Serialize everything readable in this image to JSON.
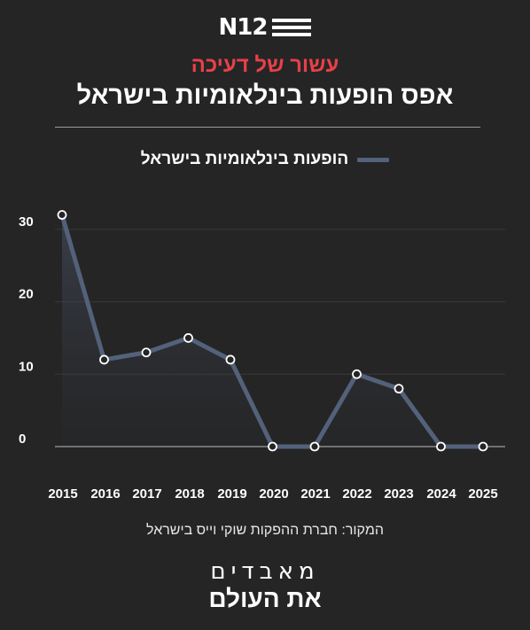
{
  "brand": {
    "logo_text": "N12"
  },
  "header": {
    "kicker": "עשור של דעיכה",
    "title": "אפס הופעות בינלאומיות בישראל"
  },
  "footer": {
    "source": "המקור: חברת ההפקות שוקי וייס בישראל",
    "brand_top": "מאבדים",
    "brand_bottom": "את העולם"
  },
  "colors": {
    "background": "#252525",
    "series_line": "#53617a",
    "kicker": "#e8404a"
  },
  "chart_data": {
    "type": "area",
    "title": "אפס הופעות בינלאומיות בישראל",
    "legend_position": "top-center",
    "grid": true,
    "categories": [
      "2015",
      "2016",
      "2017",
      "2018",
      "2019",
      "2020",
      "2021",
      "2022",
      "2023",
      "2024",
      "2025"
    ],
    "series": [
      {
        "name": "הופעות בינלאומיות בישראל",
        "values": [
          32,
          12,
          13,
          15,
          12,
          0,
          0,
          10,
          8,
          0,
          0
        ]
      }
    ],
    "yticks": [
      "0",
      "10",
      "20",
      "30"
    ],
    "ylim": [
      0,
      35
    ]
  }
}
